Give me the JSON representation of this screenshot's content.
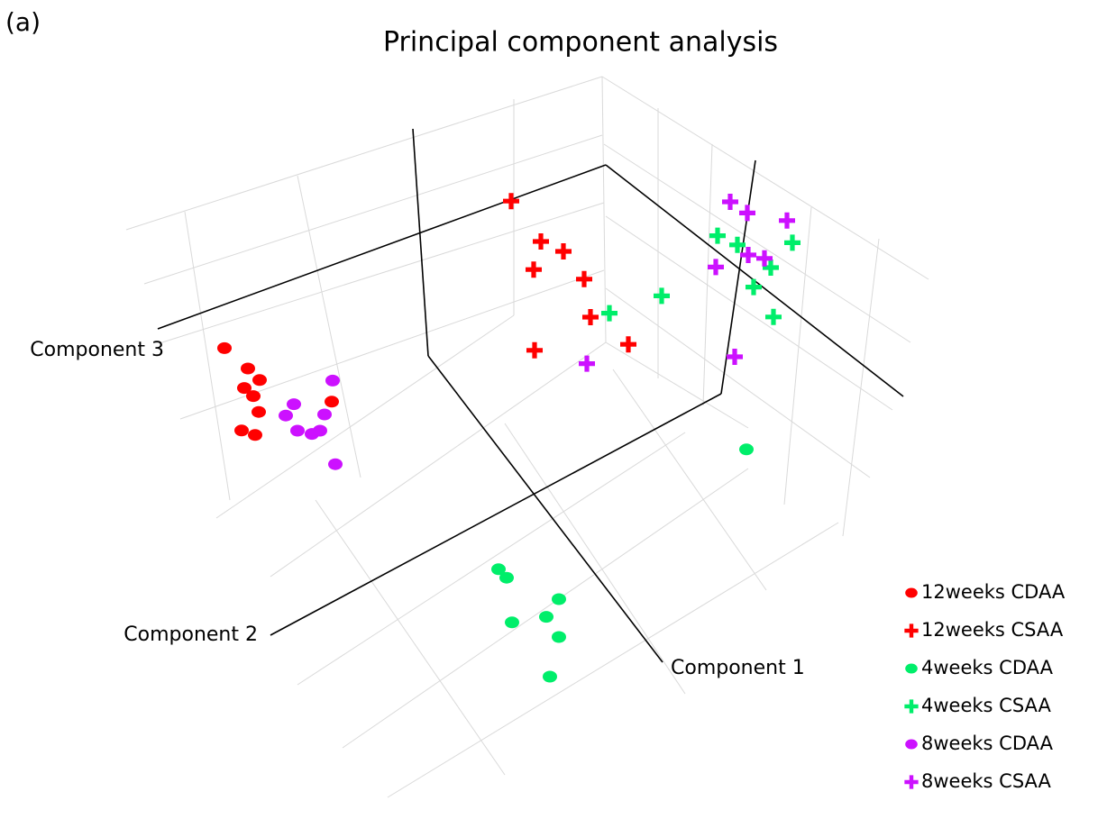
{
  "panel_label": "(a)",
  "chart_data": {
    "type": "scatter3d",
    "title": "Principal component analysis",
    "axis_labels": [
      "Component 1",
      "Component 2",
      "Component 3"
    ],
    "series": [
      {
        "name": "12weeks CDAA",
        "color": "#ff0000",
        "marker": "circle",
        "x": [
          -35.1,
          -32.5,
          -31.2,
          -32.9,
          -31.9,
          -31.3,
          -23.2,
          -33.2,
          -31.7
        ],
        "y": [
          -14.7,
          -15.4,
          -15.9,
          -17.8,
          -18.1,
          -19.5,
          -13.5,
          -22.7,
          -22.3
        ]
      },
      {
        "name": "12weeks CSAA",
        "color": "#ff0000",
        "marker": "plus",
        "x": [
          -3.3,
          0,
          2.5,
          -0.8,
          4.8,
          5.5,
          9.7,
          -0.7
        ],
        "y": [
          20.7,
          18.2,
          18.6,
          14.6,
          16.9,
          13.1,
          12.6,
          5.7
        ]
      },
      {
        "name": "4weeks CDAA",
        "color": "#00ee6a",
        "marker": "circle",
        "x": [
          22.8,
          -4.7,
          -3.8,
          2,
          0.6,
          -3.2,
          2,
          1
        ],
        "y": [
          8.8,
          -21,
          -21.4,
          -20.3,
          -23.1,
          -26,
          -24.5,
          -29.5
        ]
      },
      {
        "name": "4weeks CSAA",
        "color": "#00ee6a",
        "marker": "plus",
        "x": [
          19.6,
          21.8,
          27.9,
          25.5,
          13.4,
          23.6,
          7.6,
          25.8
        ],
        "y": [
          30.6,
          30.9,
          34.8,
          30.6,
          20.2,
          27.3,
          14.8,
          25.3
        ]
      },
      {
        "name": "8weeks CDAA",
        "color": "#cc11ff",
        "marker": "circle",
        "x": [
          -23.1,
          -27.4,
          -28.3,
          -24,
          -27,
          -25.4,
          -24.5,
          -22.8
        ],
        "y": [
          -11.1,
          -16.3,
          -18.1,
          -15.4,
          -19,
          -18.4,
          -17.5,
          -20.2
        ]
      },
      {
        "name": "8weeks CSAA",
        "color": "#cc11ff",
        "marker": "plus",
        "x": [
          21,
          22.9,
          27.3,
          23,
          24.8,
          19.4,
          5.1,
          21.5
        ],
        "y": [
          35.2,
          35.1,
          36.9,
          30.5,
          31.2,
          27,
          7.7,
          18.3
        ]
      }
    ]
  }
}
